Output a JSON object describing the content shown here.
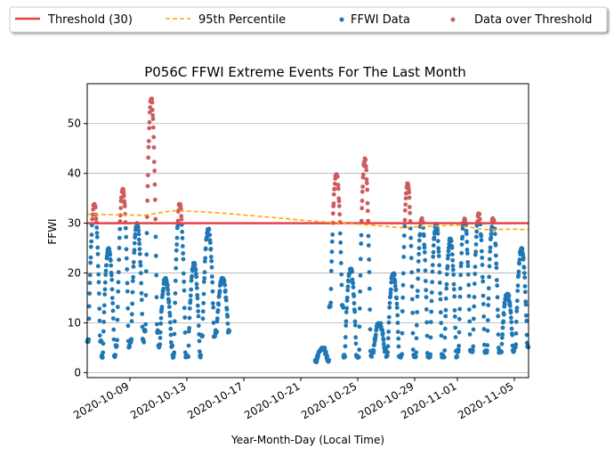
{
  "chart_data": {
    "type": "scatter",
    "title": "P056C FFWI Extreme Events For The Last Month",
    "xlabel": "Year-Month-Day (Local Time)",
    "ylabel": "FFWI",
    "xlim": [
      "2020-10-06T00:00",
      "2020-11-06T00:00"
    ],
    "ylim": [
      -1,
      58
    ],
    "x_ticks": [
      "2020-10-09",
      "2020-10-13",
      "2020-10-17",
      "2020-10-21",
      "2020-10-25",
      "2020-10-29",
      "2020-11-01",
      "2020-11-05"
    ],
    "y_ticks": [
      0,
      10,
      20,
      30,
      40,
      50
    ],
    "grid": "horizontal",
    "legend_position": "top",
    "threshold": {
      "name": "Threshold (30)",
      "value": 30,
      "color": "#e8414a"
    },
    "percentile95": {
      "name": "95th Percentile",
      "color": "#ffa500",
      "x": [
        "2020-10-06",
        "2020-10-08",
        "2020-10-10",
        "2020-10-12",
        "2020-10-14",
        "2020-10-16",
        "2020-10-18",
        "2020-10-20",
        "2020-10-22",
        "2020-10-24",
        "2020-10-26",
        "2020-10-28",
        "2020-10-30",
        "2020-11-01",
        "2020-11-03",
        "2020-11-05",
        "2020-11-06"
      ],
      "values": [
        31.8,
        31.7,
        31.6,
        32.5,
        32.3,
        31.9,
        31.4,
        30.9,
        30.4,
        30.0,
        29.6,
        29.1,
        29.4,
        29.6,
        28.7,
        28.8,
        28.7
      ]
    },
    "series": [
      {
        "name": "FFWI Data",
        "color": "#1f77b4"
      },
      {
        "name": "Data over Threshold",
        "color": "#cd5c5c"
      }
    ],
    "daily_cycles": [
      {
        "date": "2020-10-06",
        "min": 6,
        "max": 34
      },
      {
        "date": "2020-10-07",
        "min": 3,
        "max": 25
      },
      {
        "date": "2020-10-08",
        "min": 5,
        "max": 37
      },
      {
        "date": "2020-10-09",
        "min": 6,
        "max": 30
      },
      {
        "date": "2020-10-10",
        "min": 8,
        "max": 55
      },
      {
        "date": "2020-10-11",
        "min": 5,
        "max": 19
      },
      {
        "date": "2020-10-12",
        "min": 3,
        "max": 34
      },
      {
        "date": "2020-10-13",
        "min": 3,
        "max": 22
      },
      {
        "date": "2020-10-14",
        "min": 7,
        "max": 29
      },
      {
        "date": "2020-10-15",
        "min": 8,
        "max": 19
      },
      {
        "date": "2020-10-22",
        "min": 2,
        "max": 5
      },
      {
        "date": "2020-10-23",
        "min": 13,
        "max": 40
      },
      {
        "date": "2020-10-24",
        "min": 3,
        "max": 21
      },
      {
        "date": "2020-10-25",
        "min": 3,
        "max": 43
      },
      {
        "date": "2020-10-26",
        "min": 4,
        "max": 10
      },
      {
        "date": "2020-10-27",
        "min": 3,
        "max": 20
      },
      {
        "date": "2020-10-28",
        "min": 3,
        "max": 38
      },
      {
        "date": "2020-10-29",
        "min": 3,
        "max": 31
      },
      {
        "date": "2020-10-30",
        "min": 3,
        "max": 30
      },
      {
        "date": "2020-10-31",
        "min": 3,
        "max": 27
      },
      {
        "date": "2020-11-01",
        "min": 4,
        "max": 31
      },
      {
        "date": "2020-11-02",
        "min": 4,
        "max": 32
      },
      {
        "date": "2020-11-03",
        "min": 4,
        "max": 31
      },
      {
        "date": "2020-11-04",
        "min": 4,
        "max": 16
      },
      {
        "date": "2020-11-05",
        "min": 5,
        "max": 25
      }
    ]
  }
}
